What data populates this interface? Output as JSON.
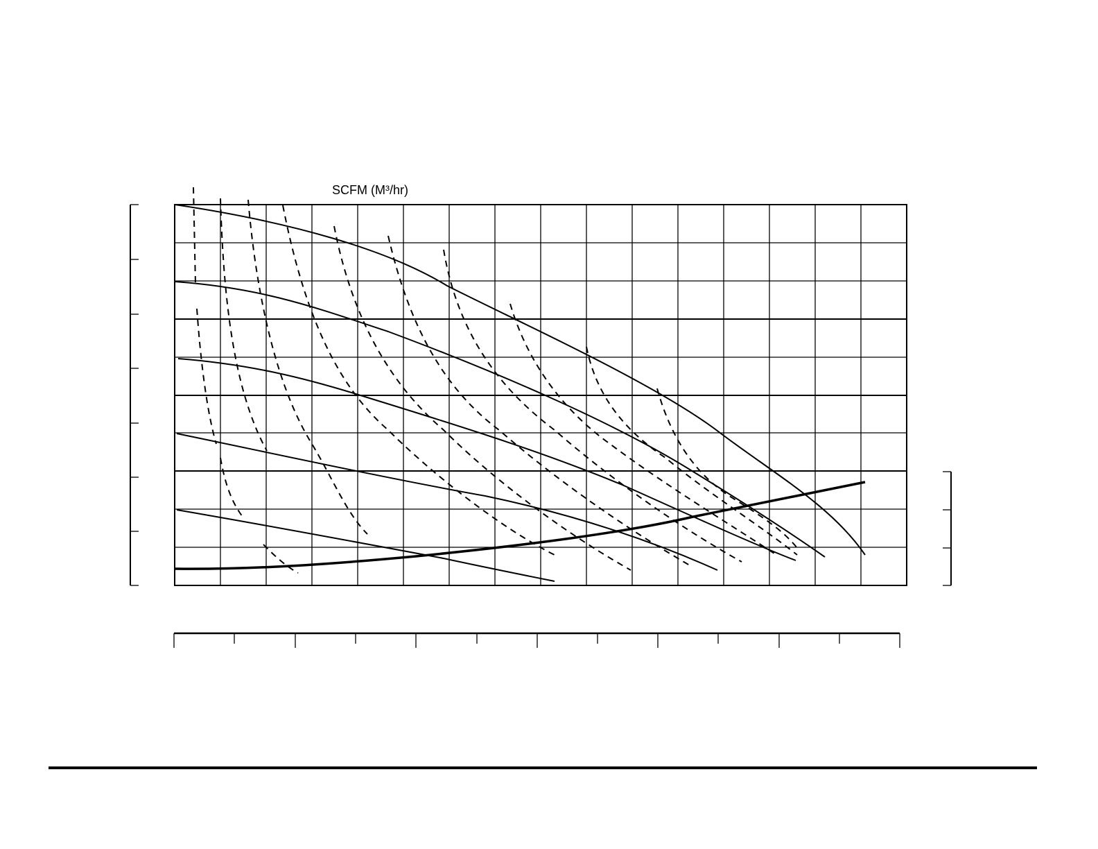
{
  "axis_label": "SCFM (M³/hr)"
}
